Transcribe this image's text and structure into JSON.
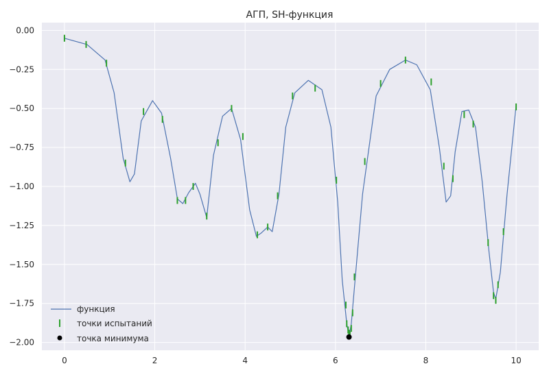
{
  "chart_data": {
    "type": "line",
    "title": "АГП, SH-функция",
    "xlabel": "",
    "ylabel": "",
    "xlim": [
      -0.5,
      10.5
    ],
    "ylim": [
      -2.05,
      0.05
    ],
    "grid": true,
    "legend_position": "lower-left",
    "x_ticks": [
      0,
      2,
      4,
      6,
      8,
      10
    ],
    "x_tick_labels": [
      "0",
      "2",
      "4",
      "6",
      "8",
      "10"
    ],
    "y_ticks": [
      0.0,
      -0.25,
      -0.5,
      -0.75,
      -1.0,
      -1.25,
      -1.5,
      -1.75,
      -2.0
    ],
    "y_tick_labels": [
      "0.00",
      "−0.25",
      "−0.50",
      "−0.75",
      "−1.00",
      "−1.25",
      "−1.50",
      "−1.75",
      "−2.00"
    ],
    "colors": {
      "background": "#eaeaf2",
      "grid": "#ffffff",
      "function": "#4c72b0",
      "trials": "#2ca02c",
      "minimum": "#000000"
    },
    "series": [
      {
        "name": "функция",
        "kind": "line",
        "x": [
          0.0,
          0.5,
          0.9,
          1.1,
          1.3,
          1.45,
          1.55,
          1.7,
          1.95,
          2.15,
          2.35,
          2.5,
          2.62,
          2.75,
          2.9,
          3.0,
          3.15,
          3.3,
          3.5,
          3.7,
          3.9,
          4.1,
          4.25,
          4.35,
          4.5,
          4.6,
          4.75,
          4.9,
          5.1,
          5.4,
          5.7,
          5.9,
          6.05,
          6.15,
          6.25,
          6.3,
          6.35,
          6.45,
          6.6,
          6.9,
          7.2,
          7.55,
          7.8,
          8.1,
          8.3,
          8.45,
          8.55,
          8.65,
          8.8,
          8.95,
          9.1,
          9.25,
          9.4,
          9.5,
          9.55,
          9.65,
          9.8,
          10.0
        ],
        "y": [
          -0.05,
          -0.09,
          -0.19,
          -0.4,
          -0.82,
          -0.97,
          -0.92,
          -0.58,
          -0.45,
          -0.53,
          -0.82,
          -1.08,
          -1.11,
          -1.04,
          -0.98,
          -1.05,
          -1.2,
          -0.8,
          -0.55,
          -0.5,
          -0.7,
          -1.15,
          -1.32,
          -1.3,
          -1.26,
          -1.29,
          -1.05,
          -0.62,
          -0.4,
          -0.32,
          -0.38,
          -0.62,
          -1.1,
          -1.6,
          -1.88,
          -1.96,
          -1.88,
          -1.55,
          -1.05,
          -0.42,
          -0.25,
          -0.19,
          -0.22,
          -0.38,
          -0.75,
          -1.1,
          -1.06,
          -0.78,
          -0.52,
          -0.51,
          -0.62,
          -0.97,
          -1.42,
          -1.68,
          -1.72,
          -1.55,
          -1.05,
          -0.48
        ]
      },
      {
        "name": "точки испытаний",
        "kind": "marker-vline",
        "x": [
          0.0,
          0.48,
          0.93,
          1.35,
          1.75,
          2.17,
          2.5,
          2.68,
          2.85,
          3.15,
          3.4,
          3.7,
          3.95,
          4.27,
          4.5,
          4.72,
          5.05,
          5.55,
          6.02,
          6.23,
          6.25,
          6.28,
          6.3,
          6.32,
          6.35,
          6.38,
          6.42,
          6.65,
          7.0,
          7.55,
          8.12,
          8.4,
          8.6,
          8.85,
          9.05,
          9.38,
          9.5,
          9.55,
          9.6,
          9.72,
          10.0
        ],
        "y": [
          -0.05,
          -0.09,
          -0.21,
          -0.85,
          -0.52,
          -0.57,
          -1.09,
          -1.09,
          -1.0,
          -1.19,
          -0.72,
          -0.5,
          -0.68,
          -1.31,
          -1.26,
          -1.06,
          -0.42,
          -0.37,
          -0.96,
          -1.76,
          -1.88,
          -1.92,
          -1.94,
          -1.95,
          -1.91,
          -1.81,
          -1.58,
          -0.84,
          -0.34,
          -0.19,
          -0.33,
          -0.87,
          -0.95,
          -0.54,
          -0.6,
          -1.36,
          -1.7,
          -1.73,
          -1.63,
          -1.29,
          -0.49
        ]
      },
      {
        "name": "точка минимума",
        "kind": "point",
        "x": [
          6.3
        ],
        "y": [
          -1.965
        ]
      }
    ]
  }
}
